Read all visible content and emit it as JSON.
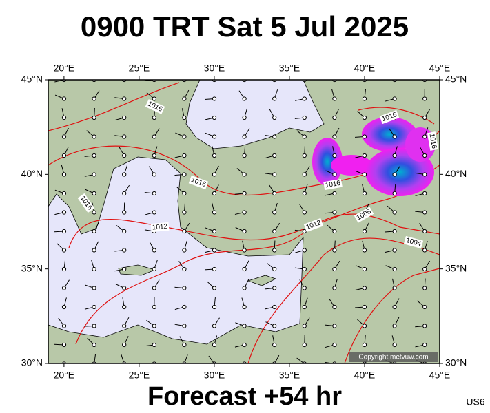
{
  "map": {
    "title": "0900 TRT Sat 5 Jul 2025",
    "footer": "Forecast +54 hr",
    "code": "US6",
    "copyright": "Copyright metvuw.com",
    "lonlim": [
      18.95,
      45
    ],
    "latlim": [
      30,
      45
    ],
    "lon_ticks": [
      {
        "value": 20,
        "label": "20°E"
      },
      {
        "value": 25,
        "label": "25°E"
      },
      {
        "value": 30,
        "label": "30°E"
      },
      {
        "value": 35,
        "label": "35°E"
      },
      {
        "value": 40,
        "label": "40°E"
      },
      {
        "value": 45,
        "label": "45°E"
      }
    ],
    "lat_ticks": [
      {
        "value": 30,
        "label": "30°N"
      },
      {
        "value": 35,
        "label": "35°N"
      },
      {
        "value": 40,
        "label": "40°N"
      },
      {
        "value": 45,
        "label": "45°N"
      }
    ],
    "isobar_labels": [
      "1016",
      "1016",
      "1016",
      "1016",
      "1016",
      "1016",
      "1012",
      "1012",
      "1008",
      "1004"
    ]
  }
}
